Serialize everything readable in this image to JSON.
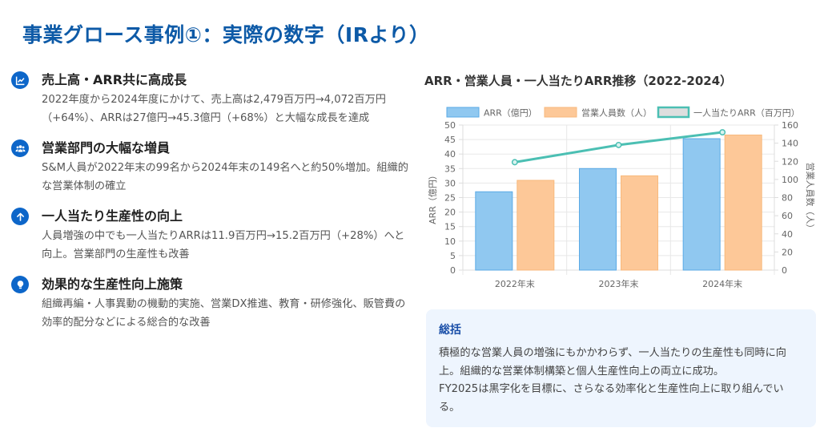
{
  "page": {
    "title": "事業グロース事例①：実際の数字（IRより）"
  },
  "highlights": [
    {
      "icon": "chart-line-icon",
      "title": "売上高・ARR共に高成長",
      "body": "2022年度から2024年度にかけて、売上高は2,479百万円→4,072百万円（+64%）、ARRは27億円→45.3億円（+68%）と大幅な成長を達成"
    },
    {
      "icon": "users-icon",
      "title": "営業部門の大幅な増員",
      "body": "S&M人員が2022年末の99名から2024年末の149名へと約50%増加。組織的な営業体制の確立"
    },
    {
      "icon": "arrow-up-icon",
      "title": "一人当たり生産性の向上",
      "body": "人員増強の中でも一人当たりARRは11.9百万円→15.2百万円（+28%）へと向上。営業部門の生産性も改善"
    },
    {
      "icon": "lightbulb-icon",
      "title": "効果的な生産性向上施策",
      "body": "組織再編・人事異動の機動的実施、営業DX推進、教育・研修強化、販管費の効率的配分などによる総合的な改善"
    }
  ],
  "chart_data": {
    "type": "bar",
    "title": "ARR・営業人員・一人当たりARR推移（2022-2024）",
    "categories": [
      "2022年末",
      "2023年末",
      "2024年末"
    ],
    "series": [
      {
        "name": "ARR（億円）",
        "type": "bar",
        "axis": "left",
        "values": [
          27,
          35,
          45.3
        ],
        "color": "#90c8f0",
        "border": "#5aaae6"
      },
      {
        "name": "営業人員数（人）",
        "type": "bar",
        "axis": "right",
        "values": [
          99,
          104,
          149
        ],
        "color": "#fdc898",
        "border": "#f8b97c"
      },
      {
        "name": "一人当たりARR（百万円）",
        "type": "line",
        "axis": "right",
        "values": [
          11.9,
          13.8,
          15.2
        ],
        "plotted_values": [
          119,
          138,
          152
        ],
        "color": "#4bbfb3"
      }
    ],
    "ylabel": "ARR（億円）",
    "ylim": [
      0,
      50
    ],
    "yticks": [
      0,
      5,
      10,
      15,
      20,
      25,
      30,
      35,
      40,
      45,
      50
    ],
    "y2label": "営業人員数（人）",
    "y2lim": [
      0,
      160
    ],
    "y2ticks": [
      0,
      20,
      40,
      60,
      80,
      100,
      120,
      140,
      160
    ],
    "grid": true,
    "legend_position": "top"
  },
  "summary": {
    "title": "総括",
    "body_lines": [
      "積極的な営業人員の増強にもかかわらず、一人当たりの生産性も同時に向上。組織的な営業体制構築と個人生産性向上の両立に成功。",
      "FY2025は黒字化を目標に、さらなる効率化と生産性向上に取り組んでいる。"
    ]
  },
  "colors": {
    "title_blue": "#0d5aa7",
    "icon_blue": "#0d66c9",
    "summary_bg": "#eef5fe",
    "summary_title": "#1a4fa8"
  }
}
